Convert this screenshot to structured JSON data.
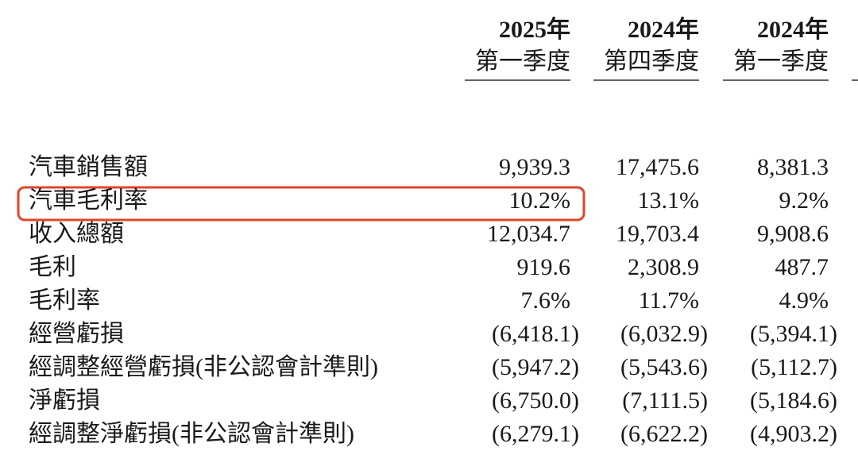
{
  "table": {
    "columns": [
      {
        "year": "2025年",
        "quarter": "第一季度"
      },
      {
        "year": "2024年",
        "quarter": "第四季度"
      },
      {
        "year": "2024年",
        "quarter": "第一季度"
      }
    ],
    "rows": [
      {
        "label": "汽車銷售額",
        "values": [
          "9,939.3",
          "17,475.6",
          "8,381.3"
        ]
      },
      {
        "label": "汽車毛利率",
        "values": [
          "10.2%",
          "13.1%",
          "9.2%"
        ]
      },
      {
        "label": "收入總額",
        "values": [
          "12,034.7",
          "19,703.4",
          "9,908.6"
        ]
      },
      {
        "label": "毛利",
        "values": [
          "919.6",
          "2,308.9",
          "487.7"
        ]
      },
      {
        "label": "毛利率",
        "values": [
          "7.6%",
          "11.7%",
          "4.9%"
        ]
      },
      {
        "label": "經營虧損",
        "values": [
          "(6,418.1)",
          "(6,032.9)",
          "(5,394.1)"
        ]
      },
      {
        "label": "經調整經營虧損(非公認會計準則)",
        "values": [
          "(5,947.2)",
          "(5,543.6)",
          "(5,112.7)"
        ]
      },
      {
        "label": "淨虧損",
        "values": [
          "(6,750.0)",
          "(7,111.5)",
          "(5,184.6)"
        ]
      },
      {
        "label": "經調整淨虧損(非公認會計準則)",
        "values": [
          "(6,279.1)",
          "(6,622.2)",
          "(4,903.2)"
        ]
      }
    ]
  }
}
